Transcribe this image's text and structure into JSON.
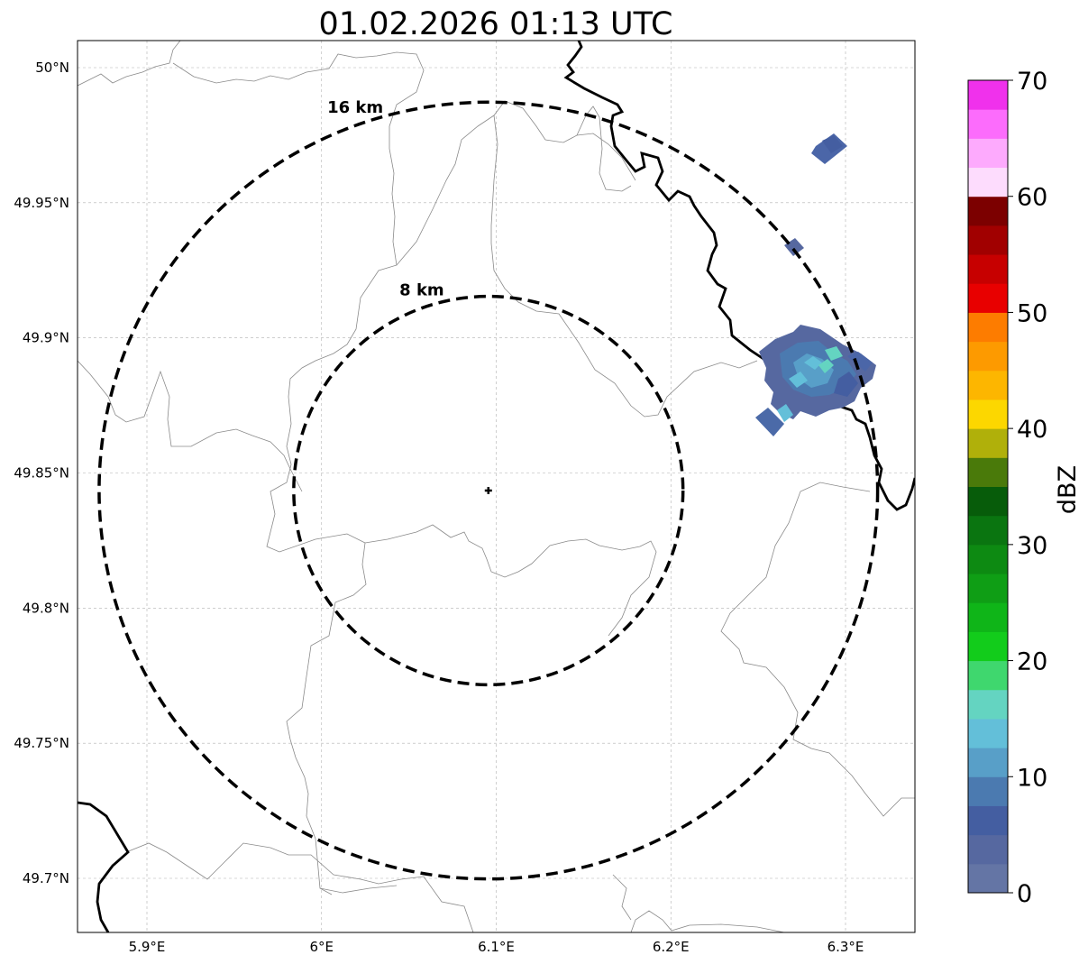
{
  "title": "01.02.2026 01:13 UTC",
  "map": {
    "lon_range": [
      5.86,
      6.34
    ],
    "lat_range": [
      49.68,
      50.01
    ],
    "lat_ticks": [
      {
        "value": 50.0,
        "label": "50°N"
      },
      {
        "value": 49.95,
        "label": "49.95°N"
      },
      {
        "value": 49.9,
        "label": "49.9°N"
      },
      {
        "value": 49.85,
        "label": "49.85°N"
      },
      {
        "value": 49.8,
        "label": "49.8°N"
      },
      {
        "value": 49.75,
        "label": "49.75°N"
      },
      {
        "value": 49.7,
        "label": "49.7°N"
      }
    ],
    "lon_ticks": [
      {
        "value": 5.9,
        "label": "5.9°E"
      },
      {
        "value": 6.0,
        "label": "6°E"
      },
      {
        "value": 6.1,
        "label": "6.1°E"
      },
      {
        "value": 6.2,
        "label": "6.2°E"
      },
      {
        "value": 6.3,
        "label": "6.3°E"
      }
    ],
    "gridlines": true,
    "radar_site": {
      "lon": 6.0955,
      "lat": 49.8435
    },
    "range_rings": [
      {
        "radius_km": 8,
        "label": "8 km"
      },
      {
        "radius_km": 16,
        "label": "16 km"
      }
    ]
  },
  "colorbar": {
    "label": "dBZ",
    "min": 0,
    "max": 70,
    "step": 2.5,
    "tick_labels": [
      "0",
      "10",
      "20",
      "30",
      "40",
      "50",
      "60",
      "70"
    ],
    "colors": [
      "#6475a5",
      "#5668a0",
      "#445ea1",
      "#4b7ab0",
      "#589fc8",
      "#63bfd9",
      "#64d4c1",
      "#3fd76e",
      "#12cc1b",
      "#0fb518",
      "#0f9e15",
      "#0d8a12",
      "#0a7510",
      "#075c0a",
      "#4a7a0a",
      "#b0b00a",
      "#fcd700",
      "#fdb600",
      "#fd9a00",
      "#fd7c00",
      "#e80000",
      "#c70000",
      "#a10000",
      "#7c0000",
      "#fddcfd",
      "#fdaafd",
      "#fc6cfc",
      "#f031ec"
    ]
  }
}
